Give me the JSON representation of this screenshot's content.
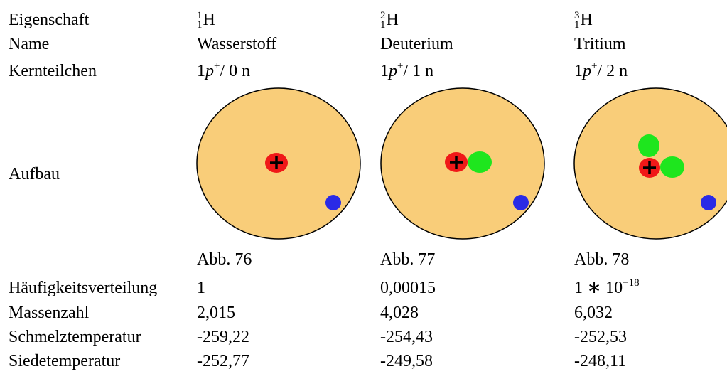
{
  "rows": {
    "property": "Eigenschaft",
    "name": "Name",
    "particles": "Kernteilchen",
    "structure": "Aufbau",
    "abundance": "Häufigkeitsverteilung",
    "mass_number": "Massenzahl",
    "melting": "Schmelztemperatur",
    "boiling": "Siedetemperatur"
  },
  "isotopes": [
    {
      "mass": "1",
      "z": "1",
      "symbol": "H",
      "name": "Wasserstoff",
      "protons": "1",
      "p": "p",
      "charge": "+",
      "neutrons": "/ 0 n",
      "figure": "Abb. 76",
      "abundance": "1",
      "mass_number": "2,015",
      "melting": "-259,22",
      "boiling": "-252,77"
    },
    {
      "mass": "2",
      "z": "1",
      "symbol": "H",
      "name": "Deuterium",
      "protons": "1",
      "p": "p",
      "charge": "+",
      "neutrons": "/ 1 n",
      "figure": "Abb. 77",
      "abundance": "0,00015",
      "mass_number": "4,028",
      "melting": "-254,43",
      "boiling": "-249,58"
    },
    {
      "mass": "3",
      "z": "1",
      "symbol": "H",
      "name": "Tritium",
      "protons": "1",
      "p": "p",
      "charge": "+",
      "neutrons": "/ 2 n",
      "figure": "Abb. 78",
      "abundance": "1 ∗ 10",
      "abundance_exp": "−18",
      "mass_number": "6,032",
      "melting": "-252,53",
      "boiling": "-248,11"
    }
  ]
}
